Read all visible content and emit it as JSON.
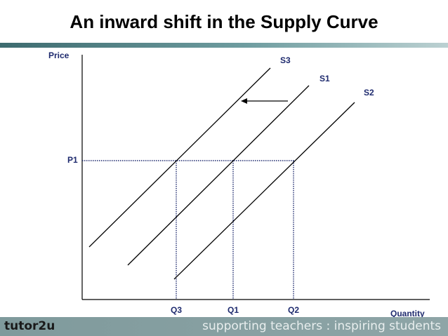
{
  "title": "An inward shift in the Supply Curve",
  "axes": {
    "y_label": "Price",
    "x_label": "Quantity"
  },
  "price_level": "P1",
  "quantities": [
    {
      "label": "Q3",
      "x": 251
    },
    {
      "label": "Q1",
      "x": 332
    },
    {
      "label": "Q2",
      "x": 418
    }
  ],
  "curves": [
    {
      "label": "S3",
      "x1": 127,
      "y1": 352,
      "x2": 385,
      "y2": 97
    },
    {
      "label": "S1",
      "x1": 182,
      "y1": 378,
      "x2": 440,
      "y2": 122
    },
    {
      "label": "S2",
      "x1": 248,
      "y1": 398,
      "x2": 505,
      "y2": 146
    }
  ],
  "curve_labels": [
    {
      "label": "S3",
      "x": 399,
      "y": 90
    },
    {
      "label": "S1",
      "x": 455,
      "y": 116
    },
    {
      "label": "S2",
      "x": 518,
      "y": 136
    }
  ],
  "colors": {
    "curve": "#000000",
    "dotted": "#1e2a6e",
    "label": "#1e2a6e"
  },
  "footer": {
    "logo": "tutor2u",
    "tagline": "supporting teachers : inspiring students"
  }
}
